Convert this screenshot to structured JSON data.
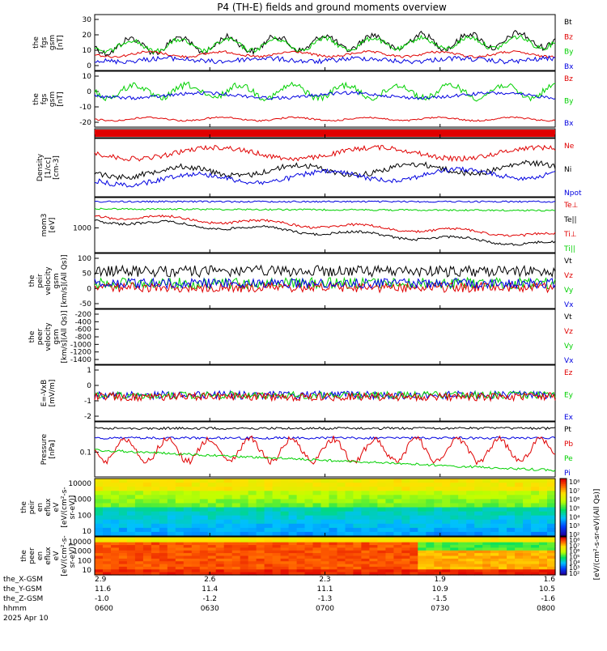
{
  "title": "P4 (TH-E) fields and ground moments overview",
  "colors": {
    "black": "#000000",
    "red": "#e00000",
    "green": "#00d000",
    "blue": "#0000e0"
  },
  "colorbar_label": "[eV/(cm²-s-sr-eV)(All Qs)]",
  "colorbar_ticks": [
    "10⁸",
    "10⁷",
    "10⁶",
    "10⁵",
    "10⁴",
    "10³",
    "10²"
  ],
  "x_ticks": [
    "0600",
    "0630",
    "0700",
    "0730",
    "0800"
  ],
  "eph_labels": [
    "the_X-GSM",
    "the_Y-GSM",
    "the_Z-GSM",
    "hhmm",
    "2025 Apr 10"
  ],
  "eph_values": [
    [
      "2.9",
      "11.6",
      "-1.0",
      "0600"
    ],
    [
      "2.6",
      "11.4",
      "-1.2",
      "0630"
    ],
    [
      "2.3",
      "11.1",
      "-1.3",
      "0700"
    ],
    [
      "1.9",
      "10.9",
      "-1.5",
      "0730"
    ],
    [
      "1.6",
      "10.5",
      "-1.6",
      "0800"
    ]
  ],
  "chart_data": [
    {
      "type": "line",
      "ylabel": [
        "the",
        "fgs",
        "gsm",
        "[nT]"
      ],
      "yticks": [
        "30",
        "20",
        "10",
        "0"
      ],
      "ylim": [
        -5,
        32
      ],
      "series": [
        {
          "name": "Bt",
          "color": "black"
        },
        {
          "name": "Bz",
          "color": "red"
        },
        {
          "name": "By",
          "color": "green"
        },
        {
          "name": "Bx",
          "color": "blue"
        }
      ]
    },
    {
      "type": "line",
      "ylabel": [
        "the",
        "fgs",
        "gsm",
        "[nT]"
      ],
      "yticks": [
        "10",
        "0",
        "-10",
        "-20"
      ],
      "ylim": [
        -28,
        15
      ],
      "series": [
        {
          "name": "Bz",
          "color": "red"
        },
        {
          "name": "By",
          "color": "green"
        },
        {
          "name": "Bx",
          "color": "blue"
        }
      ]
    },
    {
      "type": "bar",
      "ylabel": [],
      "yticks": [],
      "series": []
    },
    {
      "type": "line",
      "ylabel": [
        "Density",
        "[1/cc]",
        "[cm-3]"
      ],
      "yticks": [],
      "ylog": true,
      "series": [
        {
          "name": "Ne",
          "color": "red"
        },
        {
          "name": "Ni",
          "color": "black"
        },
        {
          "name": "Npot",
          "color": "blue"
        }
      ]
    },
    {
      "type": "line",
      "ylabel": [
        "mom3",
        "[eV]"
      ],
      "yticks": [
        "1000"
      ],
      "ylog": true,
      "series": [
        {
          "name": "Te⊥",
          "color": "red"
        },
        {
          "name": "Te||",
          "color": "black"
        },
        {
          "name": "Ti⊥",
          "color": "red"
        },
        {
          "name": "Ti||",
          "color": "green"
        }
      ]
    },
    {
      "type": "line",
      "ylabel": [
        "the",
        "peir",
        "velocity",
        "gsm",
        "[km/s](All Qs)]"
      ],
      "yticks": [
        "100",
        "50",
        "0",
        "-50"
      ],
      "ylim": [
        -70,
        105
      ],
      "series": [
        {
          "name": "Vt",
          "color": "black"
        },
        {
          "name": "Vz",
          "color": "red"
        },
        {
          "name": "Vy",
          "color": "green"
        },
        {
          "name": "Vx",
          "color": "blue"
        }
      ]
    },
    {
      "type": "line",
      "ylabel": [
        "the",
        "peer",
        "velocity",
        "gsm",
        "[km/s](All Qs)]"
      ],
      "yticks": [
        "-200",
        "-400",
        "-600",
        "-800",
        "-1000",
        "-1200",
        "-1400"
      ],
      "ylim": [
        -1500,
        -100
      ],
      "series": [
        {
          "name": "Vt",
          "color": "black"
        },
        {
          "name": "Vz",
          "color": "red"
        },
        {
          "name": "Vy",
          "color": "green"
        },
        {
          "name": "Vx",
          "color": "blue"
        }
      ]
    },
    {
      "type": "line",
      "ylabel": [
        "E=-VxB",
        "[mV/m]"
      ],
      "yticks": [
        "1",
        "0",
        "-1",
        "-2"
      ],
      "ylim": [
        -2.2,
        2.4
      ],
      "series": [
        {
          "name": "Ez",
          "color": "red"
        },
        {
          "name": "Ey",
          "color": "green"
        },
        {
          "name": "Ex",
          "color": "blue"
        }
      ]
    },
    {
      "type": "line",
      "ylabel": [
        "Pressure",
        "[nPa]"
      ],
      "yticks": [
        "0.1"
      ],
      "ylog": true,
      "series": [
        {
          "name": "Pt",
          "color": "black"
        },
        {
          "name": "Pb",
          "color": "red"
        },
        {
          "name": "Pe",
          "color": "green"
        },
        {
          "name": "Pi",
          "color": "blue"
        }
      ]
    },
    {
      "type": "heatmap",
      "ylabel": [
        "the",
        "peir",
        "en",
        "eflux",
        "eV",
        "[eV/(cm²-s-",
        "sr-eV)]"
      ],
      "yticks": [
        "10000",
        "1000",
        "100",
        "10"
      ],
      "ylog": true,
      "series": []
    },
    {
      "type": "heatmap",
      "ylabel": [
        "the",
        "peer",
        "en",
        "eflux",
        "eV",
        "[eV/(cm²-s-",
        "sr-eV)]"
      ],
      "yticks": [
        "10000",
        "1000",
        "100",
        "10"
      ],
      "ylog": true,
      "series": []
    }
  ]
}
